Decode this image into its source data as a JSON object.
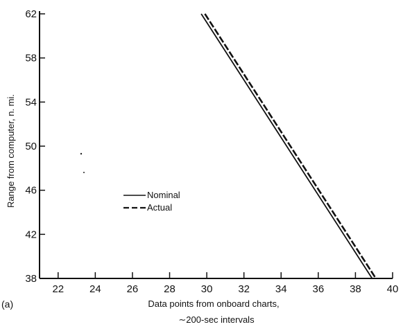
{
  "chart_data": {
    "type": "line",
    "panel_label": "(a)",
    "xlabel_lines": [
      "Data points from onboard charts,",
      "∼200-sec intervals"
    ],
    "ylabel": "Range from computer, n. mi.",
    "xlim": [
      21,
      40
    ],
    "ylim": [
      38,
      62
    ],
    "x_ticks": [
      22,
      24,
      26,
      28,
      30,
      32,
      34,
      36,
      38,
      40
    ],
    "y_ticks": [
      38,
      42,
      46,
      50,
      54,
      58,
      62
    ],
    "grid": false,
    "legend_placement": "center-left",
    "series": [
      {
        "name": "Nominal",
        "style": "solid",
        "color": "#111111",
        "x": [
          29.7,
          38.9
        ],
        "y": [
          62.0,
          38.0
        ]
      },
      {
        "name": "Actual",
        "style": "dashed",
        "color": "#111111",
        "x": [
          29.9,
          39.1
        ],
        "y": [
          62.0,
          38.0
        ]
      }
    ]
  }
}
